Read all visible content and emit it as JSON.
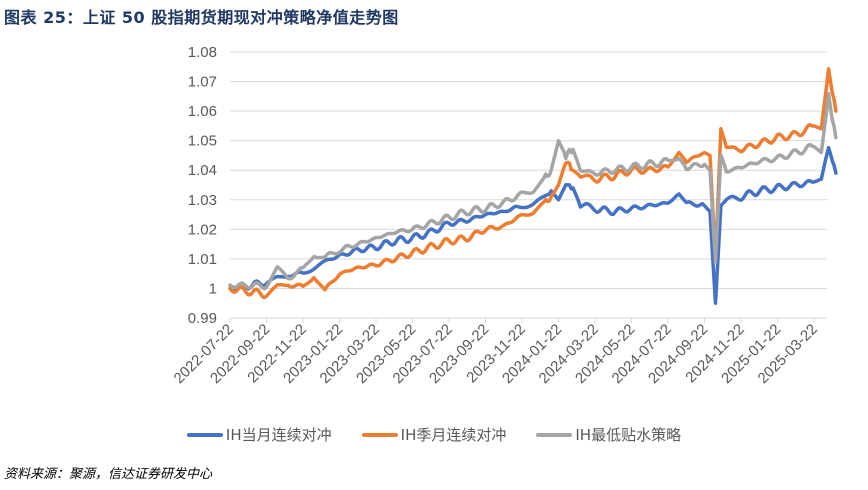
{
  "header": {
    "title": "图表 25：上证 50 股指期货期现对冲策略净值走势图"
  },
  "footer": {
    "source": "资料来源：聚源，信达证券研发中心"
  },
  "chart_data": {
    "type": "line",
    "title": "上证 50 股指期货期现对冲策略净值走势图",
    "xlabel": "",
    "ylabel": "",
    "ylim": [
      0.99,
      1.08
    ],
    "yticks": [
      "1.08",
      "1.07",
      "1.06",
      "1.05",
      "1.04",
      "1.03",
      "1.02",
      "1.01",
      "1",
      "0.99"
    ],
    "xticks": [
      "2022-07-22",
      "2022-09-22",
      "2022-11-22",
      "2023-01-22",
      "2023-03-22",
      "2023-05-22",
      "2023-07-22",
      "2023-09-22",
      "2023-11-22",
      "2024-01-22",
      "2024-03-22",
      "2024-05-22",
      "2024-07-22",
      "2024-09-22",
      "2024-11-22",
      "2025-01-22",
      "2025-03-22"
    ],
    "grid": true,
    "legend_position": "bottom",
    "x": [
      0,
      0.5,
      1,
      1.3,
      1.6,
      2,
      2.3,
      2.6,
      3,
      3.5,
      4,
      4.5,
      5,
      5.5,
      6,
      6.5,
      7,
      7.5,
      8,
      8.3,
      8.6,
      8.8,
      9,
      9.2,
      9.4,
      9.6,
      10,
      10.5,
      11,
      11.5,
      12,
      12.3,
      12.5,
      13,
      13.15,
      13.3,
      13.45,
      13.6,
      14,
      14.5,
      15,
      15.5,
      16,
      16.2,
      16.4,
      16.6
    ],
    "series": [
      {
        "name": "IH当月连续对冲",
        "color": "#4472c4",
        "values": [
          1.0,
          1.001,
          1.002,
          1.004,
          1.005,
          1.005,
          1.007,
          1.009,
          1.011,
          1.013,
          1.014,
          1.016,
          1.017,
          1.019,
          1.022,
          1.023,
          1.025,
          1.026,
          1.028,
          1.029,
          1.031,
          1.033,
          1.03,
          1.035,
          1.034,
          1.028,
          1.027,
          1.026,
          1.027,
          1.028,
          1.029,
          1.032,
          1.029,
          1.028,
          1.026,
          0.995,
          1.028,
          1.03,
          1.031,
          1.033,
          1.034,
          1.035,
          1.036,
          1.037,
          1.048,
          1.039
        ]
      },
      {
        "name": "IH季月连续对冲",
        "color": "#ed7d31",
        "values": [
          1.0,
          0.999,
          0.998,
          1.001,
          1.002,
          1.0,
          1.004,
          0.999,
          1.005,
          1.007,
          1.008,
          1.01,
          1.012,
          1.014,
          1.016,
          1.017,
          1.02,
          1.021,
          1.025,
          1.026,
          1.029,
          1.031,
          1.035,
          1.043,
          1.04,
          1.038,
          1.037,
          1.038,
          1.04,
          1.04,
          1.041,
          1.046,
          1.043,
          1.046,
          1.045,
          1.01,
          1.054,
          1.048,
          1.047,
          1.049,
          1.051,
          1.052,
          1.055,
          1.054,
          1.074,
          1.06
        ]
      },
      {
        "name": "IH最低贴水策略",
        "color": "#a5a5a5",
        "values": [
          1.001,
          1.001,
          1.001,
          1.007,
          1.004,
          1.006,
          1.011,
          1.01,
          1.013,
          1.015,
          1.017,
          1.019,
          1.02,
          1.022,
          1.024,
          1.026,
          1.027,
          1.029,
          1.032,
          1.033,
          1.037,
          1.04,
          1.05,
          1.045,
          1.047,
          1.04,
          1.039,
          1.04,
          1.041,
          1.042,
          1.043,
          1.044,
          1.041,
          1.042,
          1.04,
          1.009,
          1.045,
          1.04,
          1.041,
          1.043,
          1.044,
          1.046,
          1.048,
          1.046,
          1.065,
          1.051
        ]
      }
    ]
  },
  "legend": {
    "items": [
      {
        "label": "IH当月连续对冲",
        "color": "#4472c4"
      },
      {
        "label": "IH季月连续对冲",
        "color": "#ed7d31"
      },
      {
        "label": "IH最低贴水策略",
        "color": "#a5a5a5"
      }
    ]
  }
}
